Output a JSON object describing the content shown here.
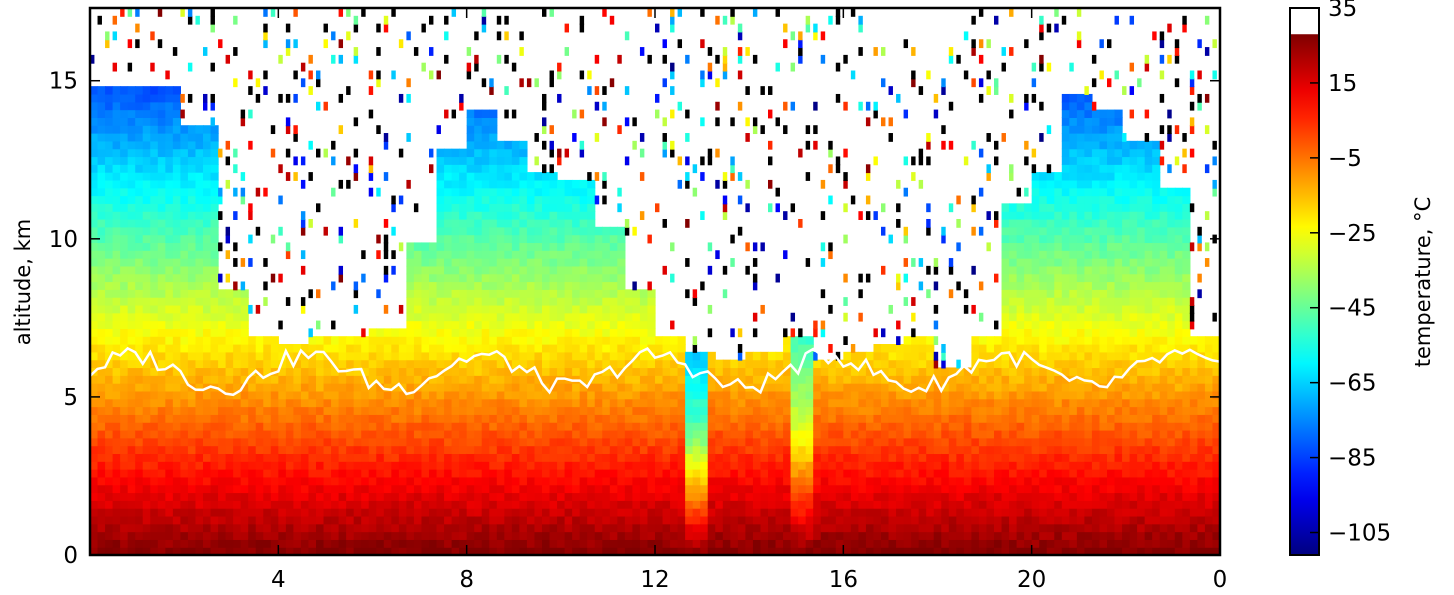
{
  "chart_data": {
    "type": "heatmap",
    "title": "",
    "xlabel": "",
    "ylabel": "altitude, km",
    "x_tick_labels": [
      "4",
      "8",
      "12",
      "16",
      "20",
      "0"
    ],
    "x_tick_hours": [
      4,
      8,
      12,
      16,
      20,
      24
    ],
    "x_range_hours": [
      0,
      24
    ],
    "ylim": [
      0,
      17.3
    ],
    "y_ticks": [
      0,
      5,
      10,
      15
    ],
    "grid": false,
    "colorbar": {
      "label": "temperature, °C",
      "range": [
        -111,
        35
      ],
      "tick_values": [
        35,
        15,
        -5,
        -25,
        -45,
        -65,
        -85,
        -105
      ],
      "tick_labels": [
        "35",
        "15",
        "−5",
        "−25",
        "−45",
        "−65",
        "−85",
        "−105"
      ],
      "colormap": "jet",
      "saturated_top_color": "#ffffff"
    },
    "contour_color": "#ffffff",
    "no_data_color": "#ffffff",
    "column_top_km": [
      14.8,
      14.8,
      14.8,
      13.5,
      8.5,
      6.8,
      6.6,
      6.8,
      7.0,
      7.2,
      10.0,
      12.8,
      14.2,
      13.0,
      12.2,
      11.8,
      10.5,
      8.5,
      7.0,
      6.5,
      6.2,
      6.5,
      7.0,
      6.2,
      6.5,
      6.6,
      6.8,
      6.0,
      7.0,
      11.0,
      12.0,
      14.5,
      14.0,
      13.0,
      11.5,
      7.0
    ],
    "temperature_profile": {
      "surface_c": 28,
      "lapse_c_per_km": 7.5,
      "cold_columns_hours": [
        12.6,
        13.2,
        14.8,
        15.3
      ]
    }
  }
}
